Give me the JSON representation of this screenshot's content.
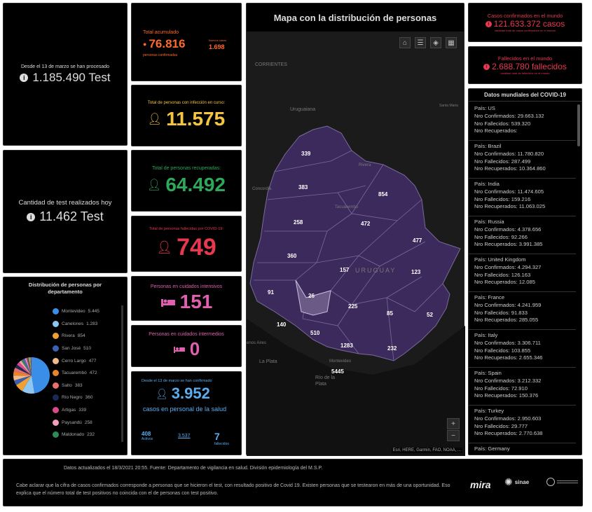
{
  "tests_total": {
    "caption": "Desde el 13 de marzo se han procesado",
    "value": "1.185.490 Test"
  },
  "tests_today": {
    "caption": "Cantidad de test realizados hoy",
    "value": "11.462 Test"
  },
  "accumulated": {
    "caption": "Total acumulado",
    "value": "76.816",
    "sub": "personas confirmadas",
    "side_caption": "Nuevos casos",
    "side_value": "1.698"
  },
  "active": {
    "caption": "Total de personas con infección en curso:",
    "value": "11.575"
  },
  "recovered": {
    "caption": "Total de personas recuperadas:",
    "value": "64.492"
  },
  "deaths": {
    "caption": "Total de personas fallecidas por COVID-19:",
    "value": "749"
  },
  "icu": {
    "caption": "Personas en cuidados intensivos",
    "value": "151"
  },
  "intermediate": {
    "caption": "Personas en cuidados intermedios",
    "value": "0"
  },
  "health_staff": {
    "caption": "Desde el 13 de marzo se han confirmado",
    "value": "3.952",
    "sub": "casos en personal de la salud",
    "active_value": "408",
    "active_label": "Activos",
    "recovered_value": "3.537",
    "deceased_value": "7",
    "deceased_label": "fallecidos"
  },
  "map": {
    "title": "Mapa con la distribución de personas",
    "attribution": "Esri, HERE, Garmin, FAO, NOAA, ...",
    "zoom_in": "+",
    "zoom_out": "−",
    "places": {
      "corrientes": "CORRIENTES",
      "uruguaiana": "Uruguaiana",
      "santa_maria": "Santa Maria",
      "concordia": "Concordia",
      "tacuarembo": "Tacuarembó",
      "rivera": "Rivera",
      "uruguay": "URUGUAY",
      "montevideo": "Montevideo",
      "la_plata": "La Plata",
      "rio_de_la_plata": "Río de la Plata",
      "aires": "enos Aires"
    },
    "departments": [
      {
        "label": "339"
      },
      {
        "label": "383"
      },
      {
        "label": "854"
      },
      {
        "label": "258"
      },
      {
        "label": "472"
      },
      {
        "label": "477"
      },
      {
        "label": "360"
      },
      {
        "label": "157"
      },
      {
        "label": "123"
      },
      {
        "label": "91"
      },
      {
        "label": "26"
      },
      {
        "label": "225"
      },
      {
        "label": "85"
      },
      {
        "label": "52"
      },
      {
        "label": "140"
      },
      {
        "label": "510"
      },
      {
        "label": "1283"
      },
      {
        "label": "232"
      },
      {
        "label": "5445"
      }
    ]
  },
  "world_confirmed": {
    "caption": "Casos confirmados en el mundo",
    "value": "121.633.372 casos",
    "sub": "cantidad total de casos confirmados en el mundo"
  },
  "world_deaths": {
    "caption": "Fallecidos en el mundo",
    "value": "2.688.780 fallecidos",
    "sub": "cantidad total de fallecidos en el mundo"
  },
  "countries": {
    "title": "Datos mundiales del COVID-19",
    "items": [
      {
        "pais": "País: US",
        "conf": "Nro Confirmados: 29.663.132",
        "fall": "Nro Fallecidos: 539.320",
        "rec": "Nro Recuperados:"
      },
      {
        "pais": "País: Brazil",
        "conf": "Nro Confirmados: 11.780.820",
        "fall": "Nro Fallecidos: 287.499",
        "rec": "Nro Recuperados: 10.364.860"
      },
      {
        "pais": "País: India",
        "conf": "Nro Confirmados: 11.474.605",
        "fall": "Nro Fallecidos: 159.216",
        "rec": "Nro Recuperados: 11.063.025"
      },
      {
        "pais": "País: Russia",
        "conf": "Nro Confirmados: 4.378.656",
        "fall": "Nro Fallecidos: 92.266",
        "rec": "Nro Recuperados: 3.991.385"
      },
      {
        "pais": "País: United Kingdom",
        "conf": "Nro Confirmados: 4.294.327",
        "fall": "Nro Fallecidos: 126.163",
        "rec": "Nro Recuperados: 12.085"
      },
      {
        "pais": "País: France",
        "conf": "Nro Confirmados: 4.241.959",
        "fall": "Nro Fallecidos: 91.833",
        "rec": "Nro Recuperados: 285.055"
      },
      {
        "pais": "País: Italy",
        "conf": "Nro Confirmados: 3.306.711",
        "fall": "Nro Fallecidos: 103.855",
        "rec": "Nro Recuperados: 2.655.346"
      },
      {
        "pais": "País: Spain",
        "conf": "Nro Confirmados: 3.212.332",
        "fall": "Nro Fallecidos: 72.910",
        "rec": "Nro Recuperados: 150.376"
      },
      {
        "pais": "País: Turkey",
        "conf": "Nro Confirmados: 2.950.603",
        "fall": "Nro Fallecidos: 29.777",
        "rec": "Nro Recuperados: 2.770.638"
      },
      {
        "pais": "País: Germany",
        "conf": "",
        "fall": "",
        "rec": ""
      }
    ]
  },
  "distribution": {
    "title": "Distribución de personas por departamento",
    "items": [
      {
        "name": "Montevideo",
        "value": "5.445",
        "color": "#3b8ee8"
      },
      {
        "name": "Canelones",
        "value": "1.283",
        "color": "#8fc6f2"
      },
      {
        "name": "Rivera",
        "value": "854",
        "color": "#f0a030"
      },
      {
        "name": "San José",
        "value": "510",
        "color": "#3d5fb0"
      },
      {
        "name": "Cerro Largo",
        "value": "477",
        "color": "#f3b98a"
      },
      {
        "name": "Tacuarembó",
        "value": "472",
        "color": "#e8852b"
      },
      {
        "name": "Salto",
        "value": "383",
        "color": "#e76f6f"
      },
      {
        "name": "Río Negro",
        "value": "360",
        "color": "#1a2a55"
      },
      {
        "name": "Artigas",
        "value": "339",
        "color": "#d94a8a"
      },
      {
        "name": "Paysandú",
        "value": "258",
        "color": "#f2a0b8"
      },
      {
        "name": "Maldonado",
        "value": "232",
        "color": "#2e8b57"
      }
    ]
  },
  "footer": {
    "updated": "Datos actualizados el 18/3/2021 20:55. Fuente: Departamento de vigilancia en salud. División epidemiología del M.S.P.",
    "note": "Cabe aclarar que la cifra de casos confirmados corresponde a personas que se hicieron el test, con resultado positivo de Covid 19. Existen personas que se testearon en más de una oportunidad. Eso explica que el número total de test positivos no coincida con el de personas con test positivo.",
    "logo1": "mira",
    "logo2": "sinae"
  },
  "colors": {
    "orange": "#ff6a2b",
    "yellow": "#f5c542",
    "green": "#2ea85a",
    "red": "#e8384f",
    "pink": "#e060b0",
    "blue": "#5aaef0",
    "map_fill": "#3c2a5c",
    "map_highlight": "#6b5a86"
  }
}
